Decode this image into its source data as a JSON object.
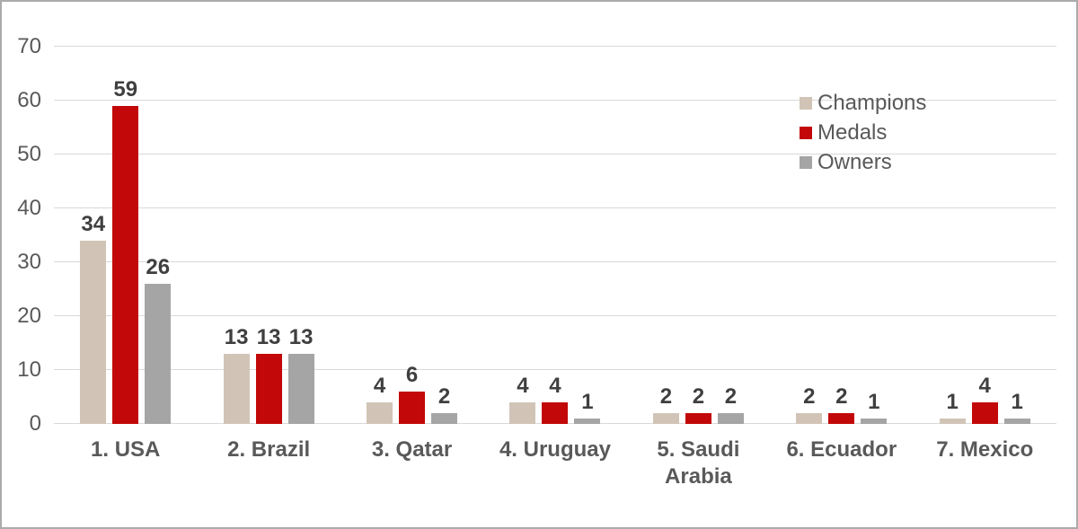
{
  "chart_data": {
    "type": "bar",
    "categories": [
      "1. USA",
      "2. Brazil",
      "3. Qatar",
      "4. Uruguay",
      "5. Saudi Arabia",
      "6. Ecuador",
      "7. Mexico"
    ],
    "series": [
      {
        "name": "Champions",
        "color": "#d1c4b6",
        "values": [
          34,
          13,
          4,
          4,
          2,
          2,
          1
        ]
      },
      {
        "name": "Medals",
        "color": "#c20808",
        "values": [
          59,
          13,
          6,
          4,
          2,
          2,
          4
        ]
      },
      {
        "name": "Owners",
        "color": "#a5a5a5",
        "values": [
          26,
          13,
          2,
          1,
          2,
          1,
          1
        ]
      }
    ],
    "ylim": [
      0,
      70
    ],
    "yticks": [
      0,
      10,
      20,
      30,
      40,
      50,
      60,
      70
    ],
    "grid": true,
    "legend_position": "top-right",
    "data_labels": true
  },
  "colors": {
    "background": "#ffffff",
    "border": "#ababab",
    "gridline": "#d9d9d9",
    "axis_text": "#595959",
    "data_label_text": "#3f3f3f"
  }
}
